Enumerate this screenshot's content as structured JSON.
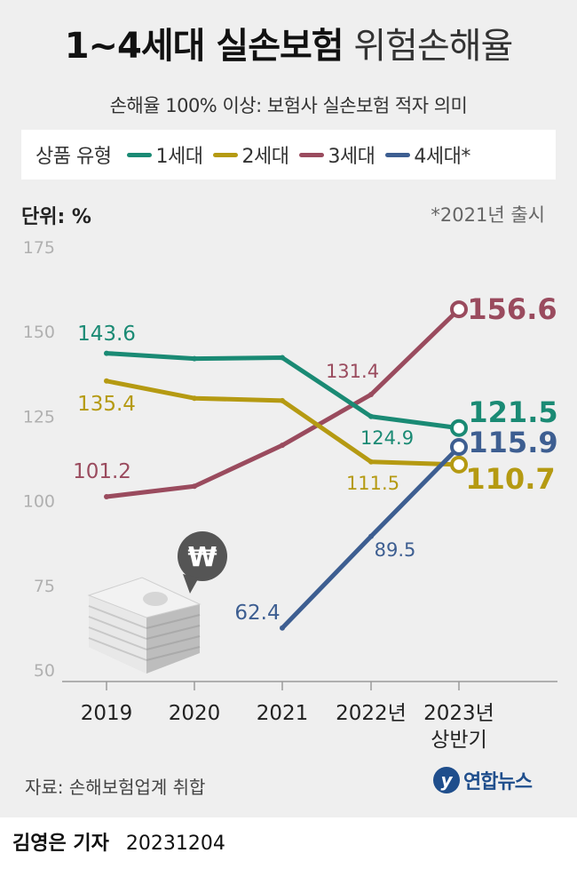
{
  "header": {
    "title_bold": "1~4세대 실손보험",
    "title_light": "위험손해율",
    "subtitle": "손해율 100% 이상: 보험사 실손보험 적자 의미"
  },
  "legend": {
    "title": "상품 유형",
    "items": [
      "1세대",
      "2세대",
      "3세대",
      "4세대*"
    ]
  },
  "unit_label": "단위: %",
  "note": "*2021년 출시",
  "chart_data": {
    "type": "line",
    "categories": [
      "2019",
      "2020",
      "2021",
      "2022년",
      "2023년\n상반기"
    ],
    "ylabel": "단위: %",
    "ylim": [
      50,
      175
    ],
    "yticks": [
      50,
      75,
      100,
      125,
      150,
      175
    ],
    "series": [
      {
        "name": "1세대",
        "color": "#1a8a74",
        "values": [
          143.6,
          142,
          142.3,
          124.9,
          121.5
        ]
      },
      {
        "name": "2세대",
        "color": "#b59a12",
        "values": [
          135.4,
          130.3,
          129.6,
          111.5,
          110.7
        ]
      },
      {
        "name": "3세대",
        "color": "#9a4b5e",
        "values": [
          101.2,
          104.3,
          116.4,
          131.4,
          156.6
        ]
      },
      {
        "name": "4세대*",
        "color": "#3d5e91",
        "values": [
          null,
          null,
          62.4,
          89.5,
          115.9
        ]
      }
    ],
    "data_labels": {
      "1세대": {
        "2019": "143.6",
        "2022년": "124.9",
        "2023년\n상반기": "121.5"
      },
      "2세대": {
        "2019": "135.4",
        "2022년": "111.5",
        "2023년\n상반기": "110.7"
      },
      "3세대": {
        "2019": "101.2",
        "2022년": "131.4",
        "2023년\n상반기": "156.6"
      },
      "4세대*": {
        "2021": "62.4",
        "2022년": "89.5",
        "2023년\n상반기": "115.9"
      }
    },
    "grid": false
  },
  "illustration": {
    "icon": "money-stack-icon",
    "badge_symbol": "₩"
  },
  "source": "자료: 손해보험업계 취합",
  "logo_mark": "y",
  "logo_text": "연합뉴스",
  "byline": {
    "reporter": "김영은 기자",
    "date": "20231204"
  }
}
